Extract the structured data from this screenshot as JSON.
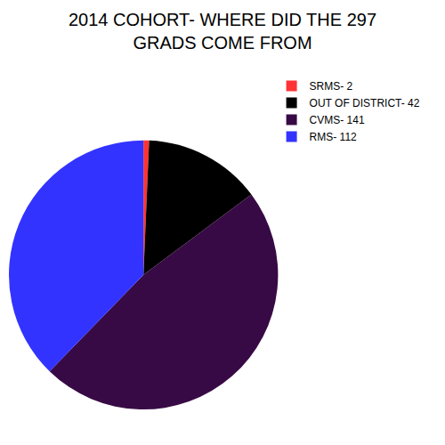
{
  "chart_data": {
    "type": "pie",
    "title": [
      "2014 COHORT- WHERE DID THE 297",
      "GRADS COME FROM"
    ],
    "categories": [
      "SRMS- 2",
      "OUT OF DISTRICT- 42",
      "CVMS- 141",
      "RMS- 112"
    ],
    "values": [
      2,
      42,
      141,
      112
    ],
    "colors": [
      "#ff3333",
      "#000000",
      "#380a45",
      "#3333ff"
    ],
    "legend": "top-right"
  }
}
